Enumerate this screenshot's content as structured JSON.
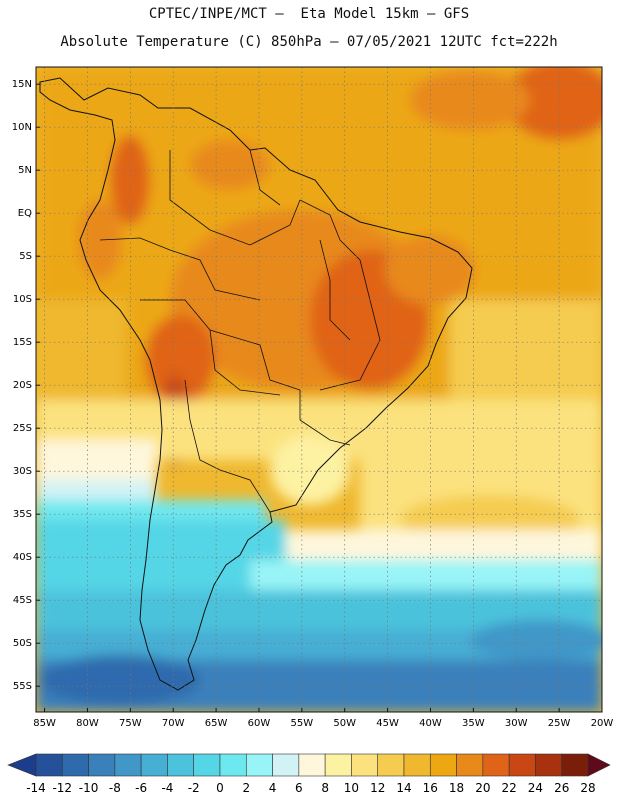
{
  "header": {
    "line1": "CPTEC/INPE/MCT –  Eta Model 15km – GFS",
    "line2": "Absolute Temperature (C) 850hPa – 07/05/2021 12UTC fct=222h"
  },
  "map": {
    "lon_range": [
      -86,
      -20
    ],
    "lat_range": [
      -58,
      17
    ],
    "lat_labels": [
      "15N",
      "10N",
      "5N",
      "EQ",
      "5S",
      "10S",
      "15S",
      "20S",
      "25S",
      "30S",
      "35S",
      "40S",
      "45S",
      "50S",
      "55S"
    ],
    "lat_values": [
      15,
      10,
      5,
      0,
      -5,
      -10,
      -15,
      -20,
      -25,
      -30,
      -35,
      -40,
      -45,
      -50,
      -55
    ],
    "lon_labels": [
      "85W",
      "80W",
      "75W",
      "70W",
      "65W",
      "60W",
      "55W",
      "50W",
      "45W",
      "40W",
      "35W",
      "30W",
      "25W",
      "20W"
    ],
    "lon_values": [
      -85,
      -80,
      -75,
      -70,
      -65,
      -60,
      -55,
      -50,
      -45,
      -40,
      -35,
      -30,
      -25,
      -20
    ],
    "grid": "dotted"
  },
  "legend": {
    "labels": [
      "-14",
      "-12",
      "-10",
      "-8",
      "-6",
      "-4",
      "-2",
      "0",
      "2",
      "4",
      "6",
      "8",
      "10",
      "12",
      "14",
      "16",
      "18",
      "20",
      "22",
      "24",
      "26",
      "28"
    ],
    "colors": [
      "#1c3c8c",
      "#24519a",
      "#2f6aad",
      "#3a80bb",
      "#4097c8",
      "#47aed4",
      "#4cc2dc",
      "#55d6e6",
      "#6ee8ef",
      "#98f4f6",
      "#d2f3f6",
      "#fef7dc",
      "#fdf1a2",
      "#fbe27e",
      "#f5cc4f",
      "#efb82f",
      "#eca713",
      "#e8891c",
      "#e06418",
      "#c84715",
      "#a8310f",
      "#7a1e0a",
      "#5e0a1a"
    ]
  }
}
